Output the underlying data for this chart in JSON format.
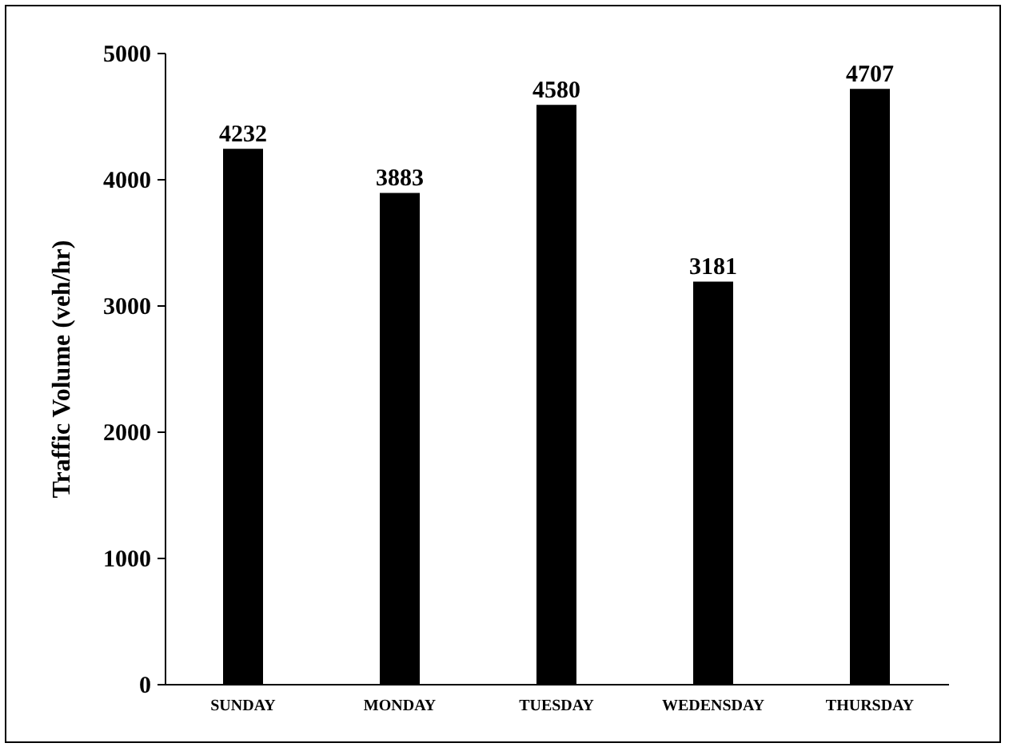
{
  "chart_data": {
    "type": "bar",
    "ylabel": "Traffic Volume (veh/hr)",
    "categories": [
      "SUNDAY",
      "MONDAY",
      "TUESDAY",
      "WEDENSDAY",
      "THURSDAY"
    ],
    "values": [
      4232,
      3883,
      4580,
      3181,
      4707
    ],
    "color": "#000000",
    "ylim": [
      0,
      5000
    ],
    "yticks": [
      0,
      1000,
      2000,
      3000,
      4000,
      5000
    ],
    "grid": false,
    "data_labels": true
  }
}
